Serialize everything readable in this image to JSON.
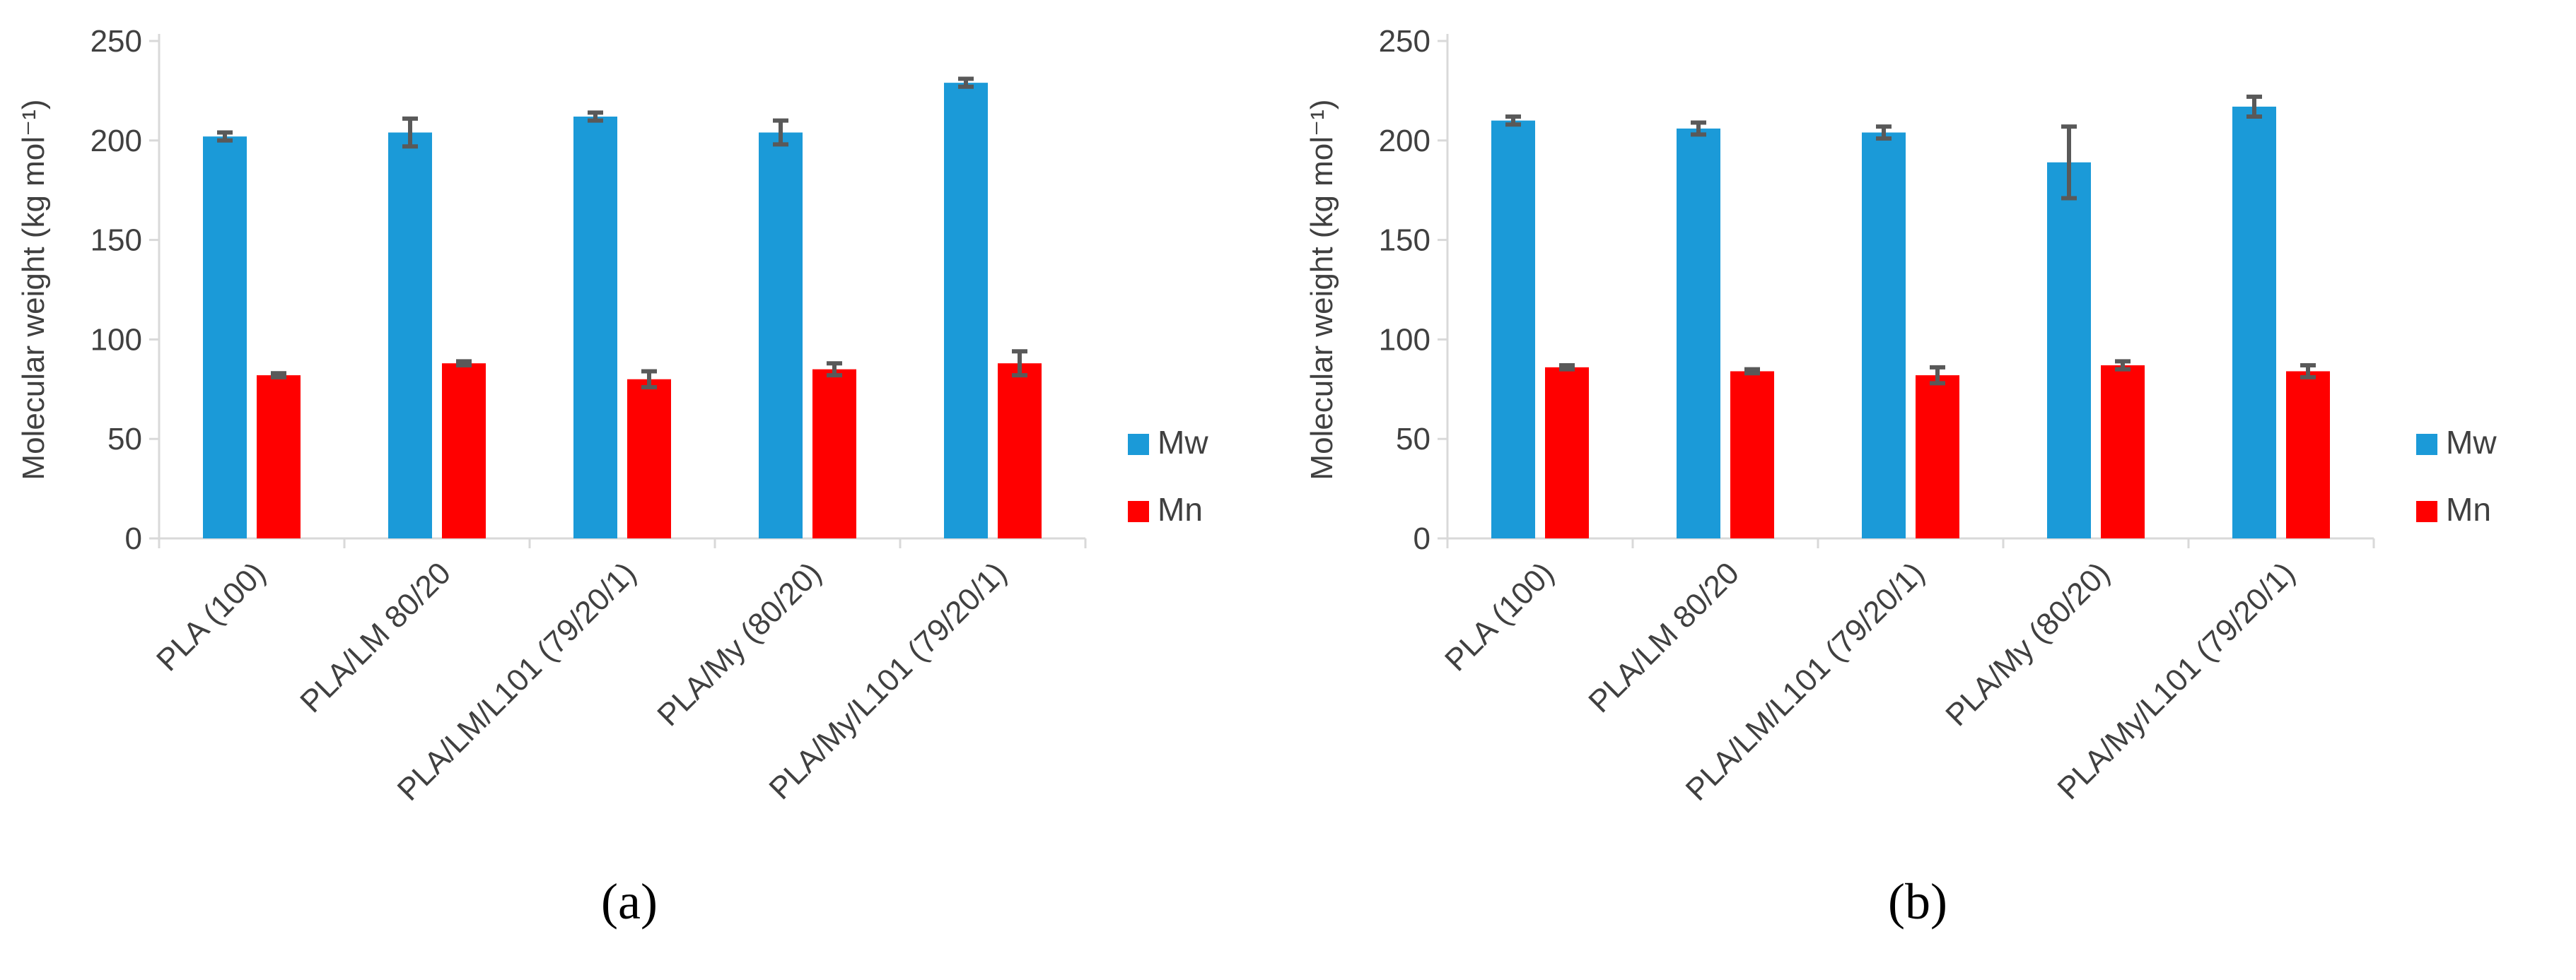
{
  "colors": {
    "mw": "#1B9AD8",
    "mn": "#FF0000",
    "axis": "#D9D9D9",
    "error": "#595959"
  },
  "chart_data": [
    {
      "type": "bar",
      "panel_label": "(a)",
      "ylabel": "Molecular weight (kg mol⁻¹)",
      "ylim": [
        0,
        250
      ],
      "yticks": [
        0,
        50,
        100,
        150,
        200,
        250
      ],
      "categories": [
        "PLA (100)",
        "PLA/LM 80/20",
        "PLA/LM/L101 (79/20/1)",
        "PLA/My (80/20)",
        "PLA/My/L101 (79/20/1)"
      ],
      "series": [
        {
          "name": "Mw",
          "values": [
            202,
            204,
            212,
            204,
            229
          ],
          "errors": [
            2,
            7,
            2,
            6,
            2
          ]
        },
        {
          "name": "Mn",
          "values": [
            82,
            88,
            80,
            85,
            88
          ],
          "errors": [
            1,
            1,
            4,
            3,
            6
          ]
        }
      ],
      "legend": [
        "Mw",
        "Mn"
      ],
      "legend_position": "right"
    },
    {
      "type": "bar",
      "panel_label": "(b)",
      "ylabel": "Molecular weight (kg mol⁻¹)",
      "ylim": [
        0,
        250
      ],
      "yticks": [
        0,
        50,
        100,
        150,
        200,
        250
      ],
      "categories": [
        "PLA (100)",
        "PLA/LM 80/20",
        "PLA/LM/L101 (79/20/1)",
        "PLA/My (80/20)",
        "PLA/My/L101 (79/20/1)"
      ],
      "series": [
        {
          "name": "Mw",
          "values": [
            210,
            206,
            204,
            189,
            217
          ],
          "errors": [
            2,
            3,
            3,
            18,
            5
          ]
        },
        {
          "name": "Mn",
          "values": [
            86,
            84,
            82,
            87,
            84
          ],
          "errors": [
            1,
            1,
            4,
            2,
            3
          ]
        }
      ],
      "legend": [
        "Mw",
        "Mn"
      ],
      "legend_position": "right"
    }
  ]
}
